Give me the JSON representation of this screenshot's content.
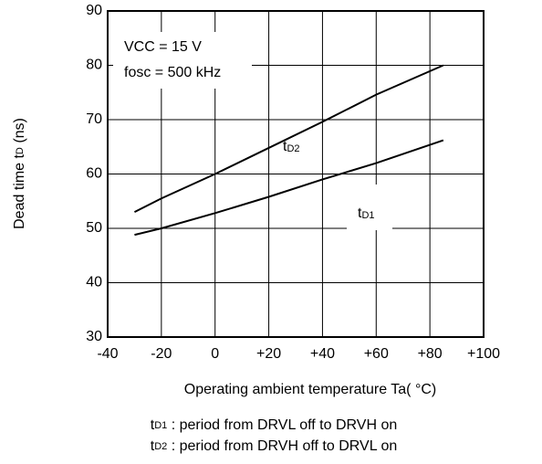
{
  "chart_data": {
    "type": "line",
    "xlabel": "Operating ambient temperature Ta( °C)",
    "ylabel": {
      "main": "Dead time t",
      "sub": "D",
      "unit": " (ns)"
    },
    "x": [
      -30,
      -20,
      0,
      20,
      40,
      60,
      85
    ],
    "series": [
      {
        "name": {
          "main": "t",
          "sub": "D1"
        },
        "color": "#000000",
        "values": [
          48.8,
          50,
          52.8,
          55.8,
          59,
          62,
          66.2
        ]
      },
      {
        "name": {
          "main": "t",
          "sub": "D2"
        },
        "color": "#000000",
        "values": [
          53,
          55.5,
          60,
          64.8,
          69.6,
          74.6,
          80
        ]
      }
    ],
    "xlim": [
      -40,
      100
    ],
    "xticks": [
      -40,
      -20,
      0,
      {
        "value": 20,
        "label": "+20"
      },
      {
        "value": 40,
        "label": "+40"
      },
      {
        "value": 60,
        "label": "+60"
      },
      {
        "value": 80,
        "label": "+80"
      },
      {
        "value": 100,
        "label": "+100"
      }
    ],
    "ylim": [
      30,
      90
    ],
    "yticks": [
      30,
      40,
      50,
      60,
      70,
      80,
      90
    ],
    "grid": true,
    "annotations": [
      "VCC = 15 V",
      "fosc = 500 kHz"
    ],
    "notes": [
      {
        "main": "t",
        "sub": "D1",
        "text": " : period from DRVL off to DRVH on"
      },
      {
        "main": "t",
        "sub": "D2",
        "text": " : period from DRVH off to DRVL on"
      }
    ]
  }
}
